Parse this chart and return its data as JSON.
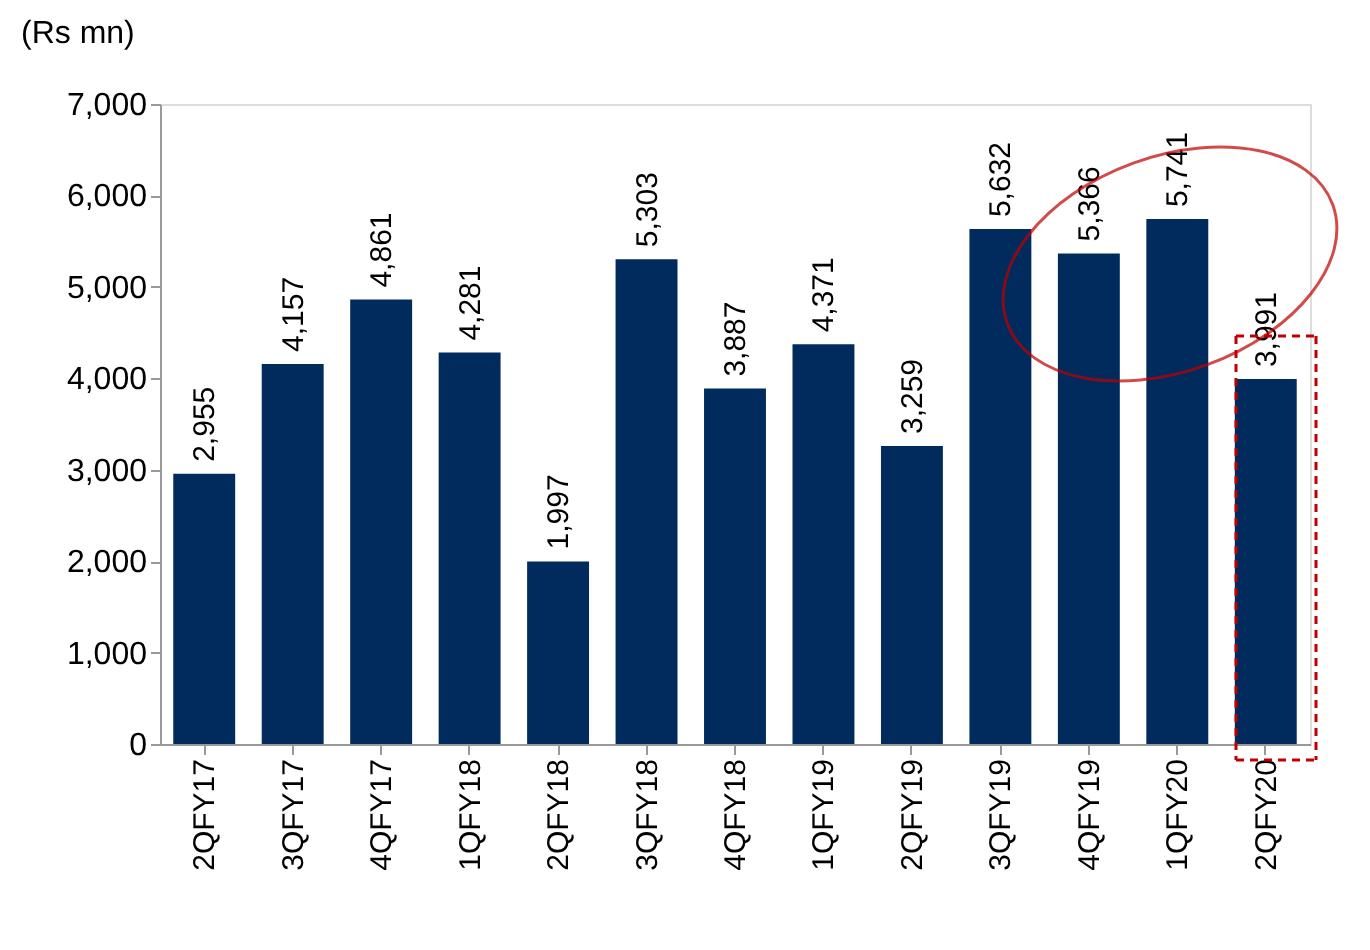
{
  "chart_data": {
    "type": "bar",
    "ylabel": "(Rs mn)",
    "categories": [
      "2QFY17",
      "3QFY17",
      "4QFY17",
      "1QFY18",
      "2QFY18",
      "3QFY18",
      "4QFY18",
      "1QFY19",
      "2QFY19",
      "3QFY19",
      "4QFY19",
      "1QFY20",
      "2QFY20"
    ],
    "values": [
      2955,
      4157,
      4861,
      4281,
      1997,
      5303,
      3887,
      4371,
      3259,
      5632,
      5366,
      5741,
      3991
    ],
    "color": "#002b5c",
    "ylim": [
      0,
      7000
    ],
    "yticks": [
      {
        "value": 0,
        "label": "0"
      },
      {
        "value": 1000,
        "label": "1,000"
      },
      {
        "value": 2000,
        "label": "2,000"
      },
      {
        "value": 3000,
        "label": "3,000"
      },
      {
        "value": 4000,
        "label": "4,000"
      },
      {
        "value": 5000,
        "label": "5,000"
      },
      {
        "value": 6000,
        "label": "6,000"
      },
      {
        "value": 7000,
        "label": "7,000"
      }
    ],
    "value_labels": [
      "2,955",
      "4,157",
      "4,861",
      "4,281",
      "1,997",
      "5,303",
      "3,887",
      "4,371",
      "3,259",
      "5,632",
      "5,366",
      "5,741",
      "3,991"
    ],
    "grid": false
  }
}
